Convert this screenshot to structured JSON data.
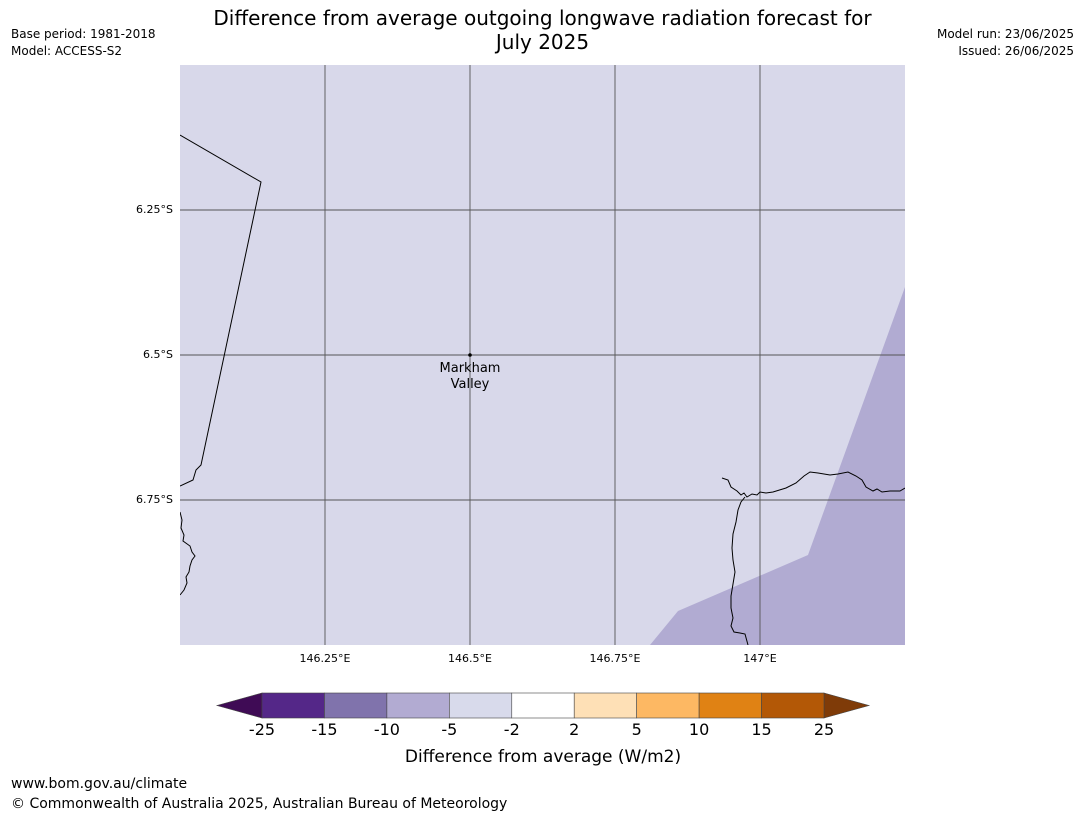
{
  "header": {
    "base_period": "Base period: 1981-2018",
    "model": "Model: ACCESS-S2",
    "model_run": "Model run: 23/06/2025",
    "issued": "Issued: 26/06/2025",
    "title_line1": "Difference from average outgoing longwave radiation forecast for",
    "title_line2": "July 2025"
  },
  "map": {
    "longitude_ticks": [
      "146.25°E",
      "146.5°E",
      "146.75°E",
      "147°E"
    ],
    "latitude_ticks": [
      "6.25°S",
      "6.5°S",
      "6.75°S"
    ],
    "place": {
      "name_line1": "Markham",
      "name_line2": "Valley"
    },
    "colors": {
      "background_band": "#d8d8ea",
      "lower_band": "#b1abd2",
      "grid": "#555555",
      "border": "#000000"
    }
  },
  "colorbar": {
    "title": "Difference from average (W/m2)",
    "tick_labels": [
      "-25",
      "-15",
      "-10",
      "-5",
      "-2",
      "2",
      "5",
      "10",
      "15",
      "25"
    ],
    "low_extend_color": "#3f0b55",
    "high_extend_color": "#7f3b08",
    "bins": [
      {
        "from": "-25",
        "to": "-15",
        "color": "#542788"
      },
      {
        "from": "-15",
        "to": "-10",
        "color": "#8073ac"
      },
      {
        "from": "-10",
        "to": "-5",
        "color": "#b2abd2"
      },
      {
        "from": "-5",
        "to": "-2",
        "color": "#d8daeb"
      },
      {
        "from": "-2",
        "to": "2",
        "color": "#ffffff"
      },
      {
        "from": "2",
        "to": "5",
        "color": "#fee0b6"
      },
      {
        "from": "5",
        "to": "10",
        "color": "#fdb863"
      },
      {
        "from": "10",
        "to": "15",
        "color": "#e08214"
      },
      {
        "from": "15",
        "to": "25",
        "color": "#b35806"
      }
    ]
  },
  "footer": {
    "url": "www.bom.gov.au/climate",
    "copyright": "© Commonwealth of Australia 2025, Australian Bureau of Meteorology"
  }
}
